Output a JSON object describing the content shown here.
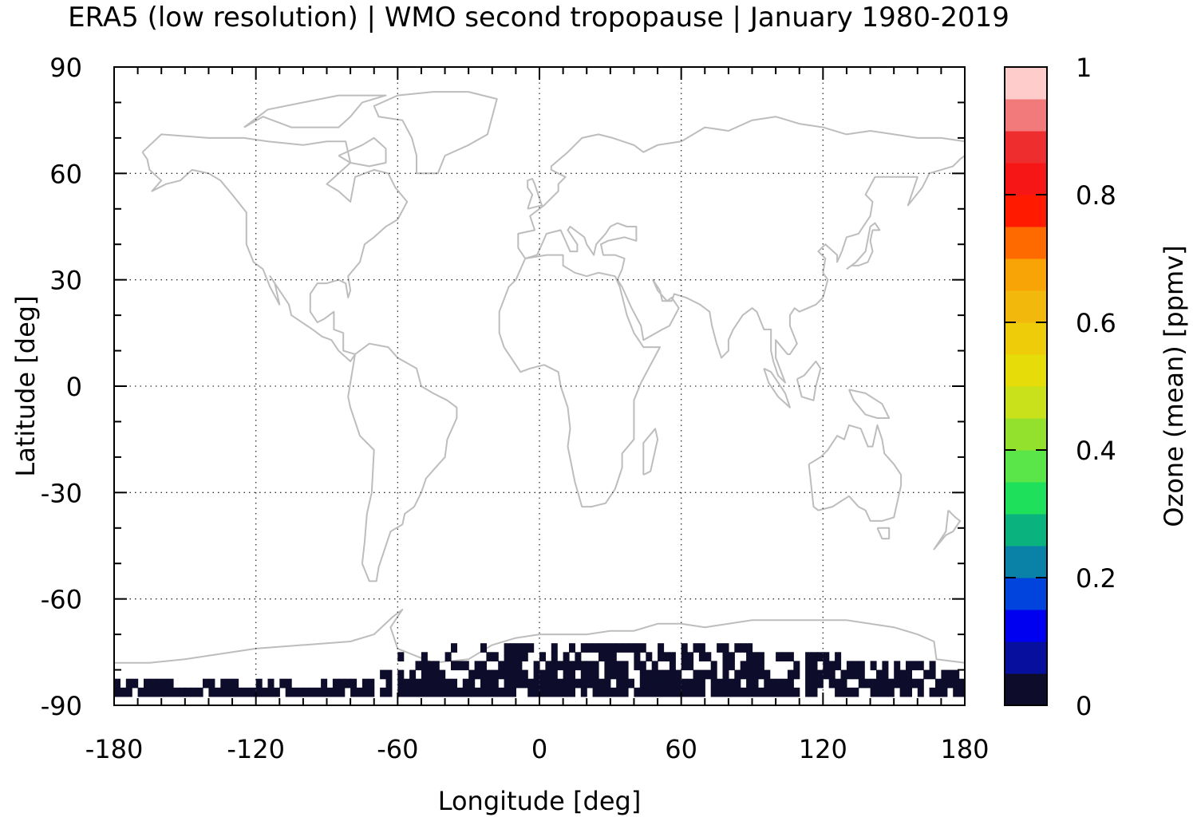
{
  "chart_data": {
    "type": "heatmap",
    "title": "ERA5 (low resolution) | WMO second tropopause | January 1980-2019",
    "xlabel": "Longitude [deg]",
    "ylabel": "Latitude [deg]",
    "xlim": [
      -180,
      180
    ],
    "ylim": [
      -90,
      90
    ],
    "xticks": [
      -180,
      -120,
      -60,
      0,
      60,
      120,
      180
    ],
    "yticks": [
      90,
      60,
      30,
      0,
      -30,
      -60,
      -90
    ],
    "xtick_labels": [
      "-180",
      "-120",
      "-60",
      "0",
      "60",
      "120",
      "180"
    ],
    "ytick_labels": [
      "90",
      "60",
      "30",
      "0",
      "-30",
      "-60",
      "-90"
    ],
    "grid": true,
    "basemap": "world coastlines (gray outline)",
    "colorbar": {
      "label": "Ozone (mean) [ppmv]",
      "range": [
        0,
        1
      ],
      "ticks": [
        0,
        0.2,
        0.4,
        0.6,
        0.8,
        1
      ],
      "tick_labels": [
        "0",
        "0.2",
        "0.4",
        "0.6",
        "0.8",
        "1"
      ],
      "colors": [
        "#0d0d2b",
        "#07109e",
        "#0000f0",
        "#0044dd",
        "#0a82a8",
        "#0ab37e",
        "#1fe05a",
        "#5ae548",
        "#94e12d",
        "#c8e11a",
        "#e6dc0a",
        "#eecc0a",
        "#f3b80c",
        "#f8a406",
        "#ff6a00",
        "#ff1a00",
        "#f71616",
        "#ee2e2e",
        "#f27a7a",
        "#ffcccc"
      ]
    },
    "data_regions": [
      {
        "description": "values near 0 ppmv over Antarctica",
        "lat_range": [
          -90,
          -73
        ],
        "lon_range": [
          -180,
          180
        ],
        "value_ppmv": 0.02
      }
    ]
  }
}
